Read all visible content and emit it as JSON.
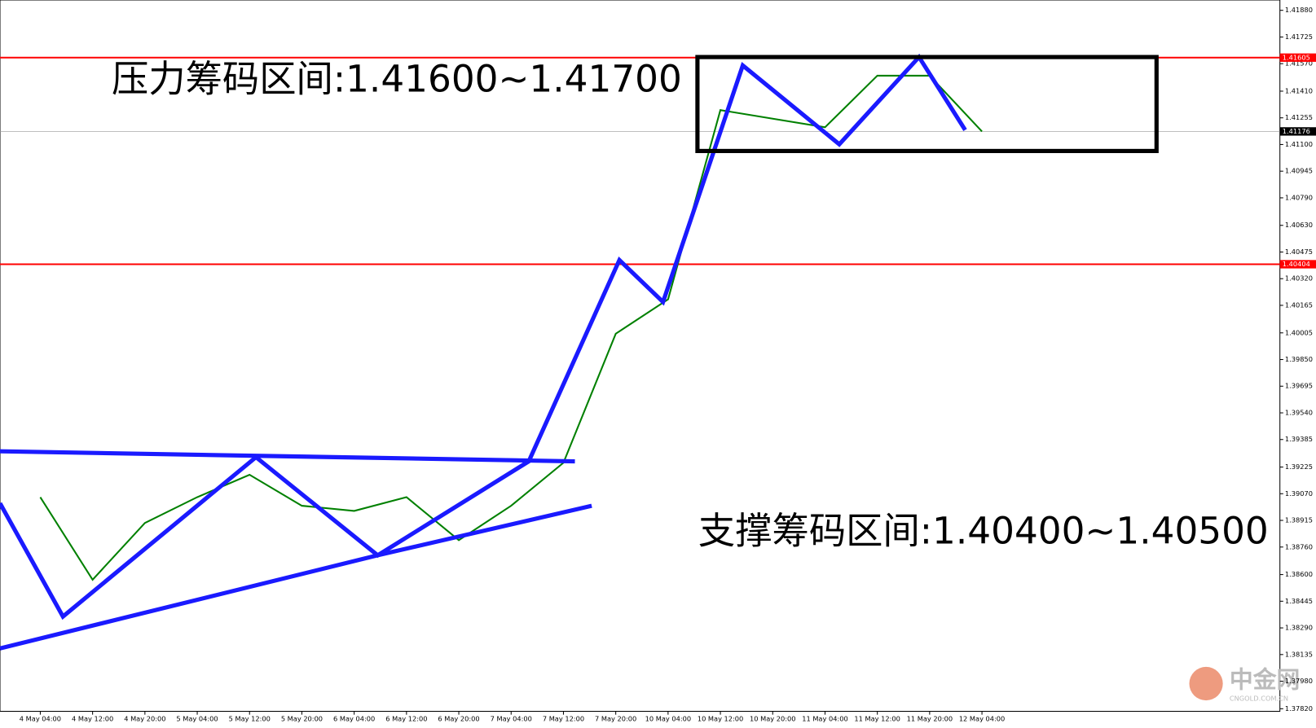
{
  "chart_data": {
    "type": "line",
    "annotations": [
      "压力筹码区间:1.41600~1.41700",
      "支撑筹码区间:1.40400~1.40500"
    ],
    "watermark": {
      "title": "中金网",
      "subtitle": "CNGOLD.COM.CN"
    },
    "categories": [
      "4 May 04:00",
      "4 May 12:00",
      "4 May 20:00",
      "5 May 04:00",
      "5 May 12:00",
      "5 May 20:00",
      "6 May 04:00",
      "6 May 12:00",
      "6 May 20:00",
      "7 May 04:00",
      "7 May 12:00",
      "7 May 20:00",
      "10 May 04:00",
      "10 May 12:00",
      "10 May 20:00",
      "11 May 04:00",
      "11 May 12:00",
      "11 May 20:00",
      "12 May 04:00"
    ],
    "values": [
      1.3905,
      1.3857,
      1.389,
      1.3905,
      1.3918,
      1.39,
      1.3897,
      1.3905,
      1.388,
      1.39,
      1.3925,
      1.4,
      1.402,
      1.413,
      1.4125,
      1.412,
      1.415,
      1.415,
      1.41176
    ],
    "color": "#008000",
    "ylim": [
      1.37805,
      1.4194
    ],
    "yticks": [
      {
        "value": 1.4188,
        "label": "1.41880"
      },
      1.41725,
      {
        "value": 1.4157,
        "label": "1.41570"
      },
      {
        "value": 1.4141,
        "label": "1.41410"
      },
      1.41255,
      {
        "value": 1.411,
        "label": "1.41100"
      },
      1.40945,
      {
        "value": 1.4079,
        "label": "1.40790"
      },
      {
        "value": 1.4063,
        "label": "1.40630"
      },
      1.40475,
      {
        "value": 1.4032,
        "label": "1.40320"
      },
      1.40165,
      1.40005,
      {
        "value": 1.3985,
        "label": "1.39850"
      },
      1.39695,
      {
        "value": 1.3954,
        "label": "1.39540"
      },
      1.39385,
      1.39225,
      {
        "value": 1.3907,
        "label": "1.39070"
      },
      1.38915,
      {
        "value": 1.3876,
        "label": "1.38760"
      },
      {
        "value": 1.386,
        "label": "1.38600"
      },
      1.38445,
      {
        "value": 1.3829,
        "label": "1.38290"
      },
      1.38135,
      {
        "value": 1.3798,
        "label": "1.37980"
      },
      {
        "value": 1.3782,
        "label": "1.37820"
      }
    ],
    "hlines": [
      1.41605,
      1.40404
    ],
    "hline_color": "#ff0000",
    "current_price": 1.41176
  }
}
